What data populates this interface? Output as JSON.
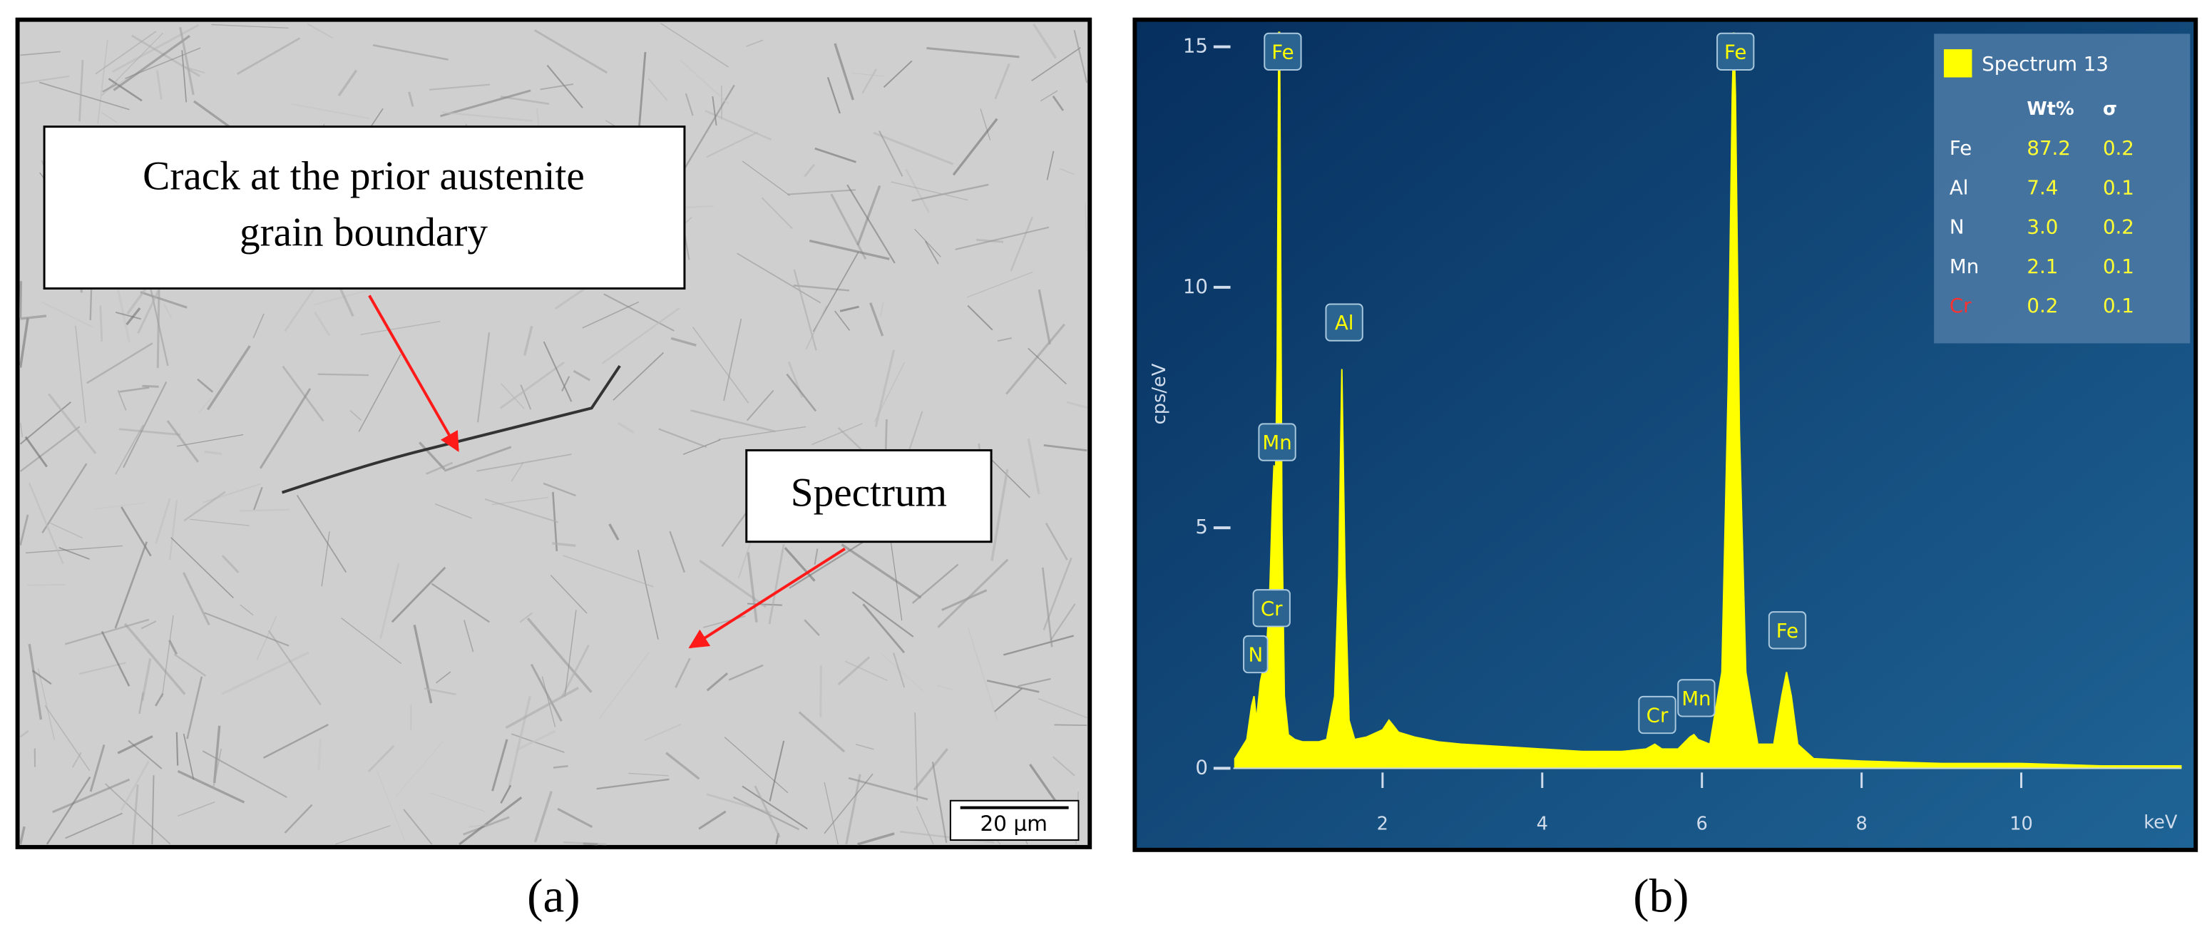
{
  "panel_a": {
    "annotations": [
      {
        "lines": [
          "Crack at the prior austenite",
          "grain boundary"
        ]
      },
      {
        "lines": [
          "Spectrum"
        ]
      }
    ],
    "scale_bar": "20 µm",
    "caption": "(a)"
  },
  "chart_data": {
    "type": "area",
    "caption": "(b)",
    "ylabel": "cps/eV",
    "xlabel": "keV",
    "color": "#ffff00",
    "x": [
      0.15,
      0.3,
      0.36,
      0.39,
      0.42,
      0.47,
      0.52,
      0.55,
      0.57,
      0.59,
      0.62,
      0.64,
      0.66,
      0.68,
      0.7,
      0.71,
      0.72,
      0.74,
      0.77,
      0.82,
      0.9,
      1.0,
      1.1,
      1.2,
      1.3,
      1.4,
      1.45,
      1.49,
      1.53,
      1.58,
      1.65,
      1.8,
      2.0,
      2.08,
      2.13,
      2.2,
      2.4,
      2.7,
      3.0,
      3.5,
      4.0,
      4.5,
      5.0,
      5.3,
      5.41,
      5.5,
      5.7,
      5.85,
      5.9,
      5.95,
      6.1,
      6.25,
      6.33,
      6.38,
      6.4,
      6.42,
      6.47,
      6.55,
      6.7,
      6.9,
      7.0,
      7.06,
      7.12,
      7.2,
      7.4,
      8.0,
      9.0,
      10.0,
      11.0,
      12.0
    ],
    "values": [
      0.2,
      0.6,
      1.3,
      1.5,
      1.0,
      1.8,
      2.2,
      2.6,
      3.1,
      3.8,
      5.5,
      6.3,
      6.1,
      8.5,
      15.3,
      15.3,
      12,
      5,
      1.5,
      0.7,
      0.6,
      0.55,
      0.55,
      0.55,
      0.6,
      1.5,
      4,
      8.3,
      4,
      1,
      0.6,
      0.65,
      0.8,
      1.0,
      0.9,
      0.75,
      0.65,
      0.55,
      0.5,
      0.45,
      0.4,
      0.35,
      0.35,
      0.4,
      0.5,
      0.4,
      0.4,
      0.65,
      0.7,
      0.6,
      0.5,
      2,
      8,
      14,
      15.3,
      14,
      7,
      2,
      0.5,
      0.5,
      1.5,
      2.0,
      1.5,
      0.5,
      0.2,
      0.15,
      0.1,
      0.1,
      0.05,
      0.05
    ],
    "xlim": [
      0.13,
      12
    ],
    "ylim": [
      0,
      15.3
    ],
    "xticks": [
      2,
      4,
      6,
      8,
      10
    ],
    "yticks": [
      0,
      5,
      10,
      15
    ],
    "peaks": [
      {
        "label": "N",
        "x": 0.41,
        "y": 2.37
      },
      {
        "label": "Cr",
        "x": 0.61,
        "y": 3.33
      },
      {
        "label": "Mn",
        "x": 0.68,
        "y": 6.78
      },
      {
        "label": "Fe",
        "x": 0.75,
        "y": 14.9
      },
      {
        "label": "Al",
        "x": 1.52,
        "y": 9.27
      },
      {
        "label": "Cr",
        "x": 5.44,
        "y": 1.11
      },
      {
        "label": "Mn",
        "x": 5.93,
        "y": 1.46
      },
      {
        "label": "Fe",
        "x": 6.42,
        "y": 14.9
      },
      {
        "label": "Fe",
        "x": 7.07,
        "y": 2.87
      }
    ],
    "legend": {
      "name": "Spectrum 13",
      "header": [
        "Wt%",
        "σ"
      ],
      "rows": [
        [
          "Fe",
          "87.2",
          "0.2"
        ],
        [
          "Al",
          "7.4",
          "0.1"
        ],
        [
          "N",
          "3.0",
          "0.2"
        ],
        [
          "Mn",
          "2.1",
          "0.1"
        ],
        [
          "Cr",
          "0.2",
          "0.1"
        ]
      ]
    }
  }
}
